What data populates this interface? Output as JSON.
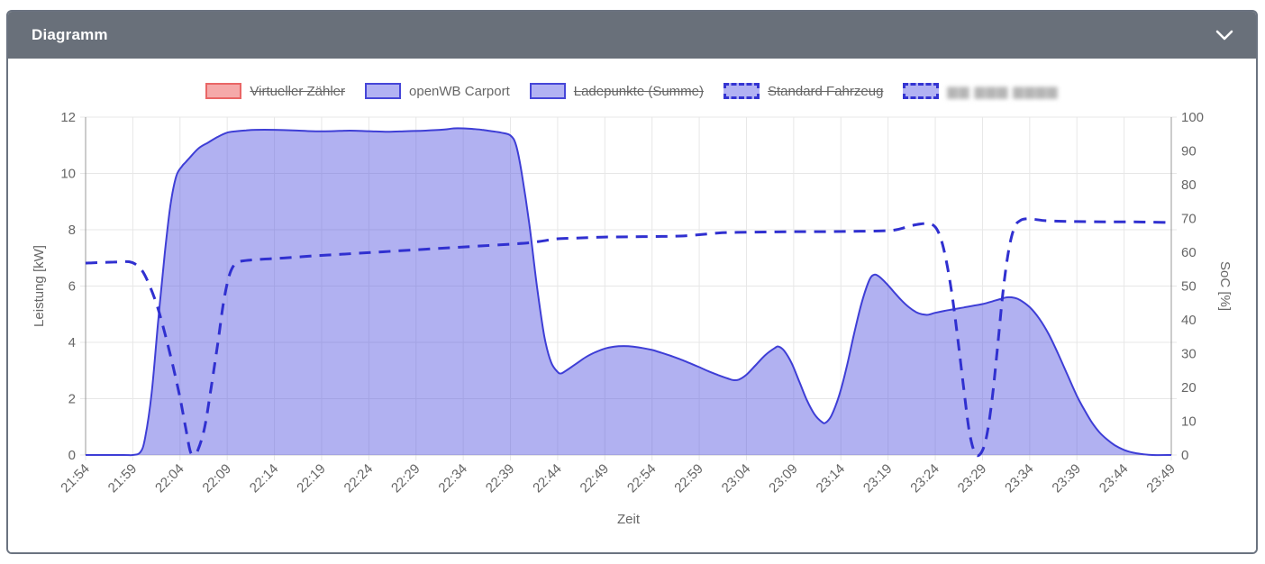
{
  "panel": {
    "title": "Diagramm",
    "collapse_icon": "chevron-down-icon"
  },
  "colors": {
    "header_bg": "#69707a",
    "power_fill": "rgba(85,85,224,0.46)",
    "power_stroke": "#3e3ed6",
    "soc_stroke": "#3030d0",
    "red_fill": "#f5a9a9",
    "red_border": "#e96666",
    "purple_fill": "#b2b2f3",
    "purple_border": "#4646d8",
    "grid": "#e7e7e7",
    "axis_line": "#999999",
    "tick_text": "#666666"
  },
  "legend": {
    "items": [
      {
        "label": "Virtueller Zähler",
        "swatch": "red-solid",
        "struck": true,
        "redacted": false
      },
      {
        "label": "openWB Carport",
        "swatch": "purple-solid",
        "struck": false,
        "redacted": false
      },
      {
        "label": "Ladepunkte (Summe)",
        "swatch": "purple-solid",
        "struck": true,
        "redacted": false
      },
      {
        "label": "Standard Fahrzeug",
        "swatch": "purple-dashed",
        "struck": true,
        "redacted": false
      },
      {
        "label": "▆▆ ▆▆▆ ▆▆▆▆",
        "swatch": "purple-dashed",
        "struck": false,
        "redacted": true
      }
    ]
  },
  "chart_data": {
    "type": "area",
    "title": "",
    "xlabel": "Zeit",
    "ylabel_left": "Leistung [kW]",
    "ylabel_right": "SoC [%]",
    "x_start": "21:54",
    "x_step_minutes": 5,
    "x_ticks": [
      "21:54",
      "21:59",
      "22:04",
      "22:09",
      "22:14",
      "22:19",
      "22:24",
      "22:29",
      "22:34",
      "22:39",
      "22:44",
      "22:49",
      "22:54",
      "22:59",
      "23:04",
      "23:09",
      "23:14",
      "23:19",
      "23:24",
      "23:29",
      "23:34",
      "23:39",
      "23:44",
      "23:49"
    ],
    "x_range_minutes": [
      0,
      115
    ],
    "ylim_left": [
      0,
      12
    ],
    "yticks_left": [
      0,
      2,
      4,
      6,
      8,
      10,
      12
    ],
    "ylim_right": [
      0,
      100
    ],
    "yticks_right": [
      0,
      10,
      20,
      30,
      40,
      50,
      60,
      70,
      80,
      90,
      100
    ],
    "grid": true,
    "legend_position": "top",
    "hidden_series": [
      "Virtueller Zähler",
      "Ladepunkte (Summe)",
      "Standard Fahrzeug"
    ],
    "series": [
      {
        "name": "openWB Carport",
        "axis": "left",
        "unit": "kW",
        "style": "area",
        "line_dash": "solid",
        "points_t_min_vs_kW": [
          [
            0,
            0
          ],
          [
            4,
            0
          ],
          [
            5,
            0
          ],
          [
            5.8,
            0.1
          ],
          [
            6.3,
            0.6
          ],
          [
            7,
            2.2
          ],
          [
            7.7,
            4.8
          ],
          [
            8.4,
            7.2
          ],
          [
            9,
            8.9
          ],
          [
            9.6,
            9.9
          ],
          [
            10.2,
            10.25
          ],
          [
            10.6,
            10.4
          ],
          [
            11,
            10.55
          ],
          [
            12,
            10.9
          ],
          [
            13,
            11.1
          ],
          [
            14,
            11.3
          ],
          [
            15,
            11.45
          ],
          [
            16,
            11.5
          ],
          [
            17,
            11.53
          ],
          [
            18,
            11.55
          ],
          [
            20,
            11.55
          ],
          [
            22,
            11.53
          ],
          [
            24,
            11.5
          ],
          [
            26,
            11.5
          ],
          [
            28,
            11.52
          ],
          [
            30,
            11.5
          ],
          [
            32,
            11.48
          ],
          [
            34,
            11.5
          ],
          [
            36,
            11.52
          ],
          [
            38,
            11.56
          ],
          [
            39,
            11.6
          ],
          [
            40,
            11.6
          ],
          [
            41,
            11.58
          ],
          [
            42,
            11.55
          ],
          [
            43,
            11.5
          ],
          [
            44,
            11.45
          ],
          [
            45,
            11.35
          ],
          [
            45.6,
            11.0
          ],
          [
            46.2,
            10.0
          ],
          [
            47,
            8.2
          ],
          [
            47.8,
            6.0
          ],
          [
            48.6,
            4.2
          ],
          [
            49.3,
            3.3
          ],
          [
            50,
            2.95
          ],
          [
            50.4,
            2.9
          ],
          [
            51,
            3.02
          ],
          [
            52,
            3.25
          ],
          [
            53,
            3.48
          ],
          [
            54,
            3.65
          ],
          [
            55,
            3.78
          ],
          [
            56,
            3.85
          ],
          [
            57,
            3.87
          ],
          [
            58,
            3.85
          ],
          [
            59,
            3.8
          ],
          [
            60,
            3.73
          ],
          [
            61,
            3.63
          ],
          [
            62,
            3.52
          ],
          [
            63,
            3.4
          ],
          [
            64,
            3.26
          ],
          [
            65,
            3.12
          ],
          [
            66,
            2.97
          ],
          [
            67,
            2.84
          ],
          [
            68,
            2.72
          ],
          [
            68.6,
            2.66
          ],
          [
            69.2,
            2.68
          ],
          [
            70,
            2.85
          ],
          [
            71,
            3.2
          ],
          [
            72,
            3.55
          ],
          [
            73,
            3.8
          ],
          [
            73.4,
            3.85
          ],
          [
            74,
            3.7
          ],
          [
            74.8,
            3.25
          ],
          [
            75.6,
            2.6
          ],
          [
            76.4,
            1.95
          ],
          [
            77.2,
            1.45
          ],
          [
            78,
            1.17
          ],
          [
            78.4,
            1.15
          ],
          [
            79,
            1.4
          ],
          [
            79.8,
            2.1
          ],
          [
            80.6,
            3.1
          ],
          [
            81.4,
            4.3
          ],
          [
            82.2,
            5.4
          ],
          [
            83,
            6.2
          ],
          [
            83.5,
            6.4
          ],
          [
            84,
            6.35
          ],
          [
            84.8,
            6.1
          ],
          [
            85.6,
            5.8
          ],
          [
            86.4,
            5.5
          ],
          [
            87.2,
            5.25
          ],
          [
            88,
            5.07
          ],
          [
            88.6,
            5.0
          ],
          [
            89.2,
            4.98
          ],
          [
            90,
            5.05
          ],
          [
            91,
            5.12
          ],
          [
            92,
            5.18
          ],
          [
            93,
            5.24
          ],
          [
            94,
            5.3
          ],
          [
            95,
            5.36
          ],
          [
            96,
            5.45
          ],
          [
            97,
            5.55
          ],
          [
            97.6,
            5.6
          ],
          [
            98.4,
            5.58
          ],
          [
            99,
            5.5
          ],
          [
            100,
            5.25
          ],
          [
            101,
            4.85
          ],
          [
            102,
            4.3
          ],
          [
            103,
            3.6
          ],
          [
            104,
            2.85
          ],
          [
            105,
            2.1
          ],
          [
            105.8,
            1.6
          ],
          [
            106.6,
            1.15
          ],
          [
            107.4,
            0.8
          ],
          [
            108.2,
            0.55
          ],
          [
            109,
            0.35
          ],
          [
            110,
            0.18
          ],
          [
            111,
            0.08
          ],
          [
            112,
            0.03
          ],
          [
            113,
            0
          ],
          [
            115,
            0
          ]
        ]
      },
      {
        "name": "vehicle SoC (label redacted)",
        "axis": "right",
        "unit": "%",
        "style": "line",
        "line_dash": "dashed",
        "points_t_min_vs_pct": [
          [
            0,
            56.8
          ],
          [
            1,
            56.9
          ],
          [
            2,
            57.0
          ],
          [
            3,
            57.1
          ],
          [
            4,
            57.2
          ],
          [
            4.6,
            57.2
          ],
          [
            5.2,
            56.6
          ],
          [
            6,
            54.5
          ],
          [
            6.8,
            50
          ],
          [
            7.6,
            44
          ],
          [
            8.4,
            36
          ],
          [
            9.2,
            27
          ],
          [
            10,
            17
          ],
          [
            10.6,
            8
          ],
          [
            11.1,
            1
          ],
          [
            11.5,
            0.3
          ],
          [
            11.9,
            1.5
          ],
          [
            12.6,
            8
          ],
          [
            13.3,
            20
          ],
          [
            14,
            33
          ],
          [
            14.6,
            45
          ],
          [
            15.2,
            53
          ],
          [
            15.8,
            56.5
          ],
          [
            16.4,
            57.3
          ],
          [
            17.5,
            57.7
          ],
          [
            19,
            58.0
          ],
          [
            21,
            58.3
          ],
          [
            24,
            58.9
          ],
          [
            27,
            59.4
          ],
          [
            30,
            59.9
          ],
          [
            33,
            60.4
          ],
          [
            36,
            60.9
          ],
          [
            39,
            61.4
          ],
          [
            42,
            61.9
          ],
          [
            45,
            62.4
          ],
          [
            47,
            62.8
          ],
          [
            48.5,
            63.4
          ],
          [
            50,
            64.0
          ],
          [
            52,
            64.2
          ],
          [
            55,
            64.5
          ],
          [
            58,
            64.6
          ],
          [
            61,
            64.7
          ],
          [
            63,
            64.8
          ],
          [
            65,
            65.2
          ],
          [
            67,
            65.7
          ],
          [
            69,
            65.9
          ],
          [
            72,
            66.0
          ],
          [
            75,
            66.1
          ],
          [
            78,
            66.1
          ],
          [
            81,
            66.2
          ],
          [
            84,
            66.3
          ],
          [
            85.5,
            66.5
          ],
          [
            86.5,
            67.1
          ],
          [
            87.5,
            67.9
          ],
          [
            88.5,
            68.4
          ],
          [
            89.3,
            68.5
          ],
          [
            90,
            67.5
          ],
          [
            90.6,
            64
          ],
          [
            91.2,
            57
          ],
          [
            91.8,
            47
          ],
          [
            92.4,
            34
          ],
          [
            93,
            20
          ],
          [
            93.6,
            7
          ],
          [
            94.2,
            0.6
          ],
          [
            94.8,
            0.4
          ],
          [
            95.4,
            5
          ],
          [
            96,
            16
          ],
          [
            96.6,
            32
          ],
          [
            97.2,
            49
          ],
          [
            97.8,
            61
          ],
          [
            98.4,
            67.5
          ],
          [
            99,
            69.4
          ],
          [
            99.6,
            69.9
          ],
          [
            100.4,
            69.8
          ],
          [
            101.5,
            69.4
          ],
          [
            103,
            69.2
          ],
          [
            105,
            69.1
          ],
          [
            108,
            69.0
          ],
          [
            111,
            69.0
          ],
          [
            113,
            68.9
          ],
          [
            115,
            68.8
          ]
        ]
      }
    ]
  }
}
